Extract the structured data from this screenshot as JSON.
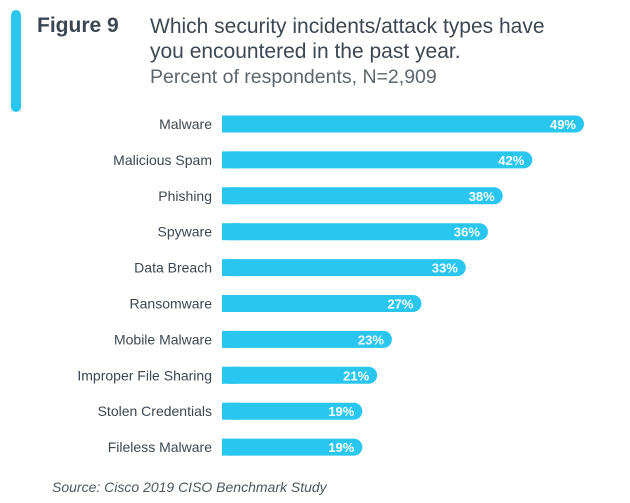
{
  "figure": {
    "label": "Figure 9",
    "title_line1": "Which security incidents/attack types have",
    "title_line2": "you encountered in the past year.",
    "subtitle": "Percent of respondents, N=2,909",
    "source": "Source: Cisco 2019 CISO Benchmark Study"
  },
  "colors": {
    "accent": "#29c6f0",
    "bar": "#29c6f0",
    "text": "#3d4752"
  },
  "chart_data": {
    "type": "bar",
    "orientation": "horizontal",
    "categories": [
      "Malware",
      "Malicious Spam",
      "Phishing",
      "Spyware",
      "Data Breach",
      "Ransomware",
      "Mobile Malware",
      "Improper File Sharing",
      "Stolen Credentials",
      "Fileless Malware"
    ],
    "values": [
      49,
      42,
      38,
      36,
      33,
      27,
      23,
      21,
      19,
      19
    ],
    "value_labels": [
      "49%",
      "42%",
      "38%",
      "36%",
      "33%",
      "27%",
      "23%",
      "21%",
      "19%",
      "19%"
    ],
    "unit": "%",
    "xlim": [
      0,
      49
    ],
    "grid": false,
    "legend": "none"
  }
}
